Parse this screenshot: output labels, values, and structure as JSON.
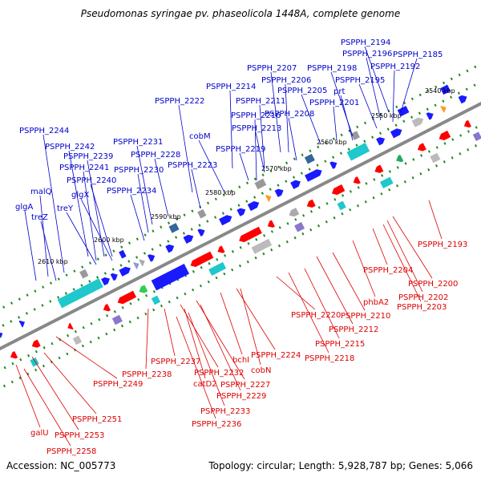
{
  "header": {
    "title": "Pseudomonas syringae pv. phaseolicola 1448A, complete genome"
  },
  "footer": {
    "accession": "Accession: NC_005773",
    "summary": "Topology: circular; Length: 5,928,787 bp; Genes: 5,066"
  },
  "colors": {
    "forward_label": "#0000cc",
    "reverse_label": "#dd0000",
    "backbone": "#888888",
    "feature_blue": "#1a1aff",
    "feature_red": "#ff0000",
    "feature_cyan": "#1ec8cc",
    "tick_green": "#228822"
  },
  "ticks": [
    "2540 kbp",
    "2550 kbp",
    "2560 kbp",
    "2570 kbp",
    "2580 kbp",
    "2590 kbp",
    "2600 kbp",
    "2610 kbp"
  ],
  "forward_labels": [
    "PSPPH_2194",
    "PSPPH_2185",
    "PSPPH_2196",
    "PSPPH_2192",
    "PSPPH_2207",
    "PSPPH_2198",
    "PSPPH_2195",
    "PSPPH_2206",
    "PSPPH_2214",
    "PSPPH_2205",
    "prt",
    "PSPPH_2222",
    "PSPPH_2211",
    "PSPPH_2201",
    "PSPPH_2208",
    "PSPPH_2216",
    "PSPPH_2213",
    "PSPPH_2244",
    "cobM",
    "PSPPH_2231",
    "PSPPH_2242",
    "PSPPH_2219",
    "PSPPH_2239",
    "PSPPH_2228",
    "PSPPH_2241",
    "PSPPH_2223",
    "PSPPH_2230",
    "PSPPH_2240",
    "PSPPH_2234",
    "malQ",
    "glgX",
    "glgA",
    "treY",
    "treZ"
  ],
  "reverse_labels": [
    "PSPPH_2193",
    "PSPPH_2204",
    "PSPPH_2200",
    "PSPPH_2202",
    "PSPPH_2203",
    "phbA2",
    "PSPPH_2210",
    "PSPPH_2220",
    "PSPPH_2212",
    "PSPPH_2215",
    "PSPPH_2218",
    "PSPPH_2224",
    "bchI",
    "cobN",
    "PSPPH_2237",
    "PSPPH_2238",
    "PSPPH_2232",
    "catD2",
    "PSPPH_2227",
    "PSPPH_2229",
    "PSPPH_2249",
    "PSPPH_2233",
    "PSPPH_2251",
    "PSPPH_2236",
    "PSPPH_2253",
    "galU",
    "PSPPH_2258"
  ]
}
